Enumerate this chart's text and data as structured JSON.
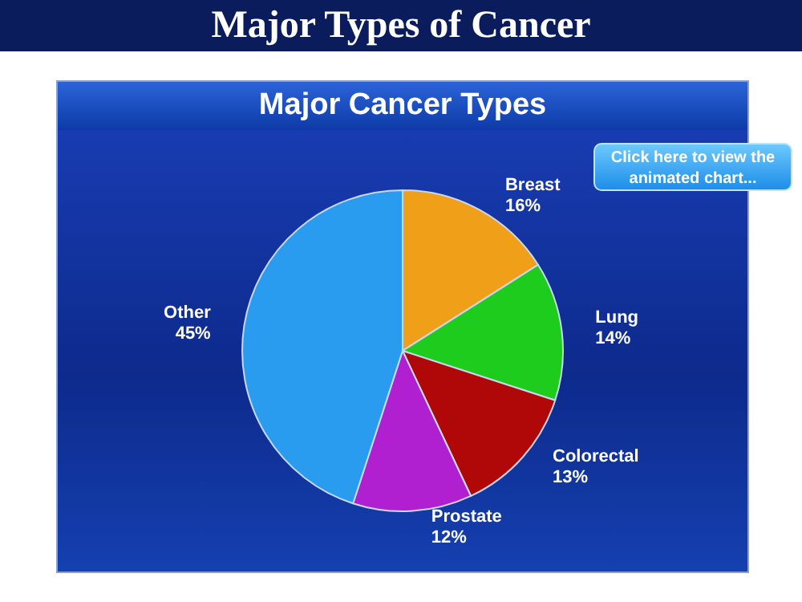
{
  "chart_data": {
    "type": "pie",
    "title": "Major Types of Cancer",
    "subtitle": "Major Cancer Types",
    "categories": [
      "Breast",
      "Lung",
      "Colorectal",
      "Prostate",
      "Other"
    ],
    "values": [
      16,
      14,
      13,
      12,
      45
    ],
    "colors": [
      "#f0a018",
      "#1ecc1e",
      "#b00808",
      "#b020d0",
      "#2a9cf0"
    ],
    "value_labels": [
      "16%",
      "14%",
      "13%",
      "12%",
      "45%"
    ],
    "annotations": [
      "Click here to view the animated chart..."
    ]
  }
}
